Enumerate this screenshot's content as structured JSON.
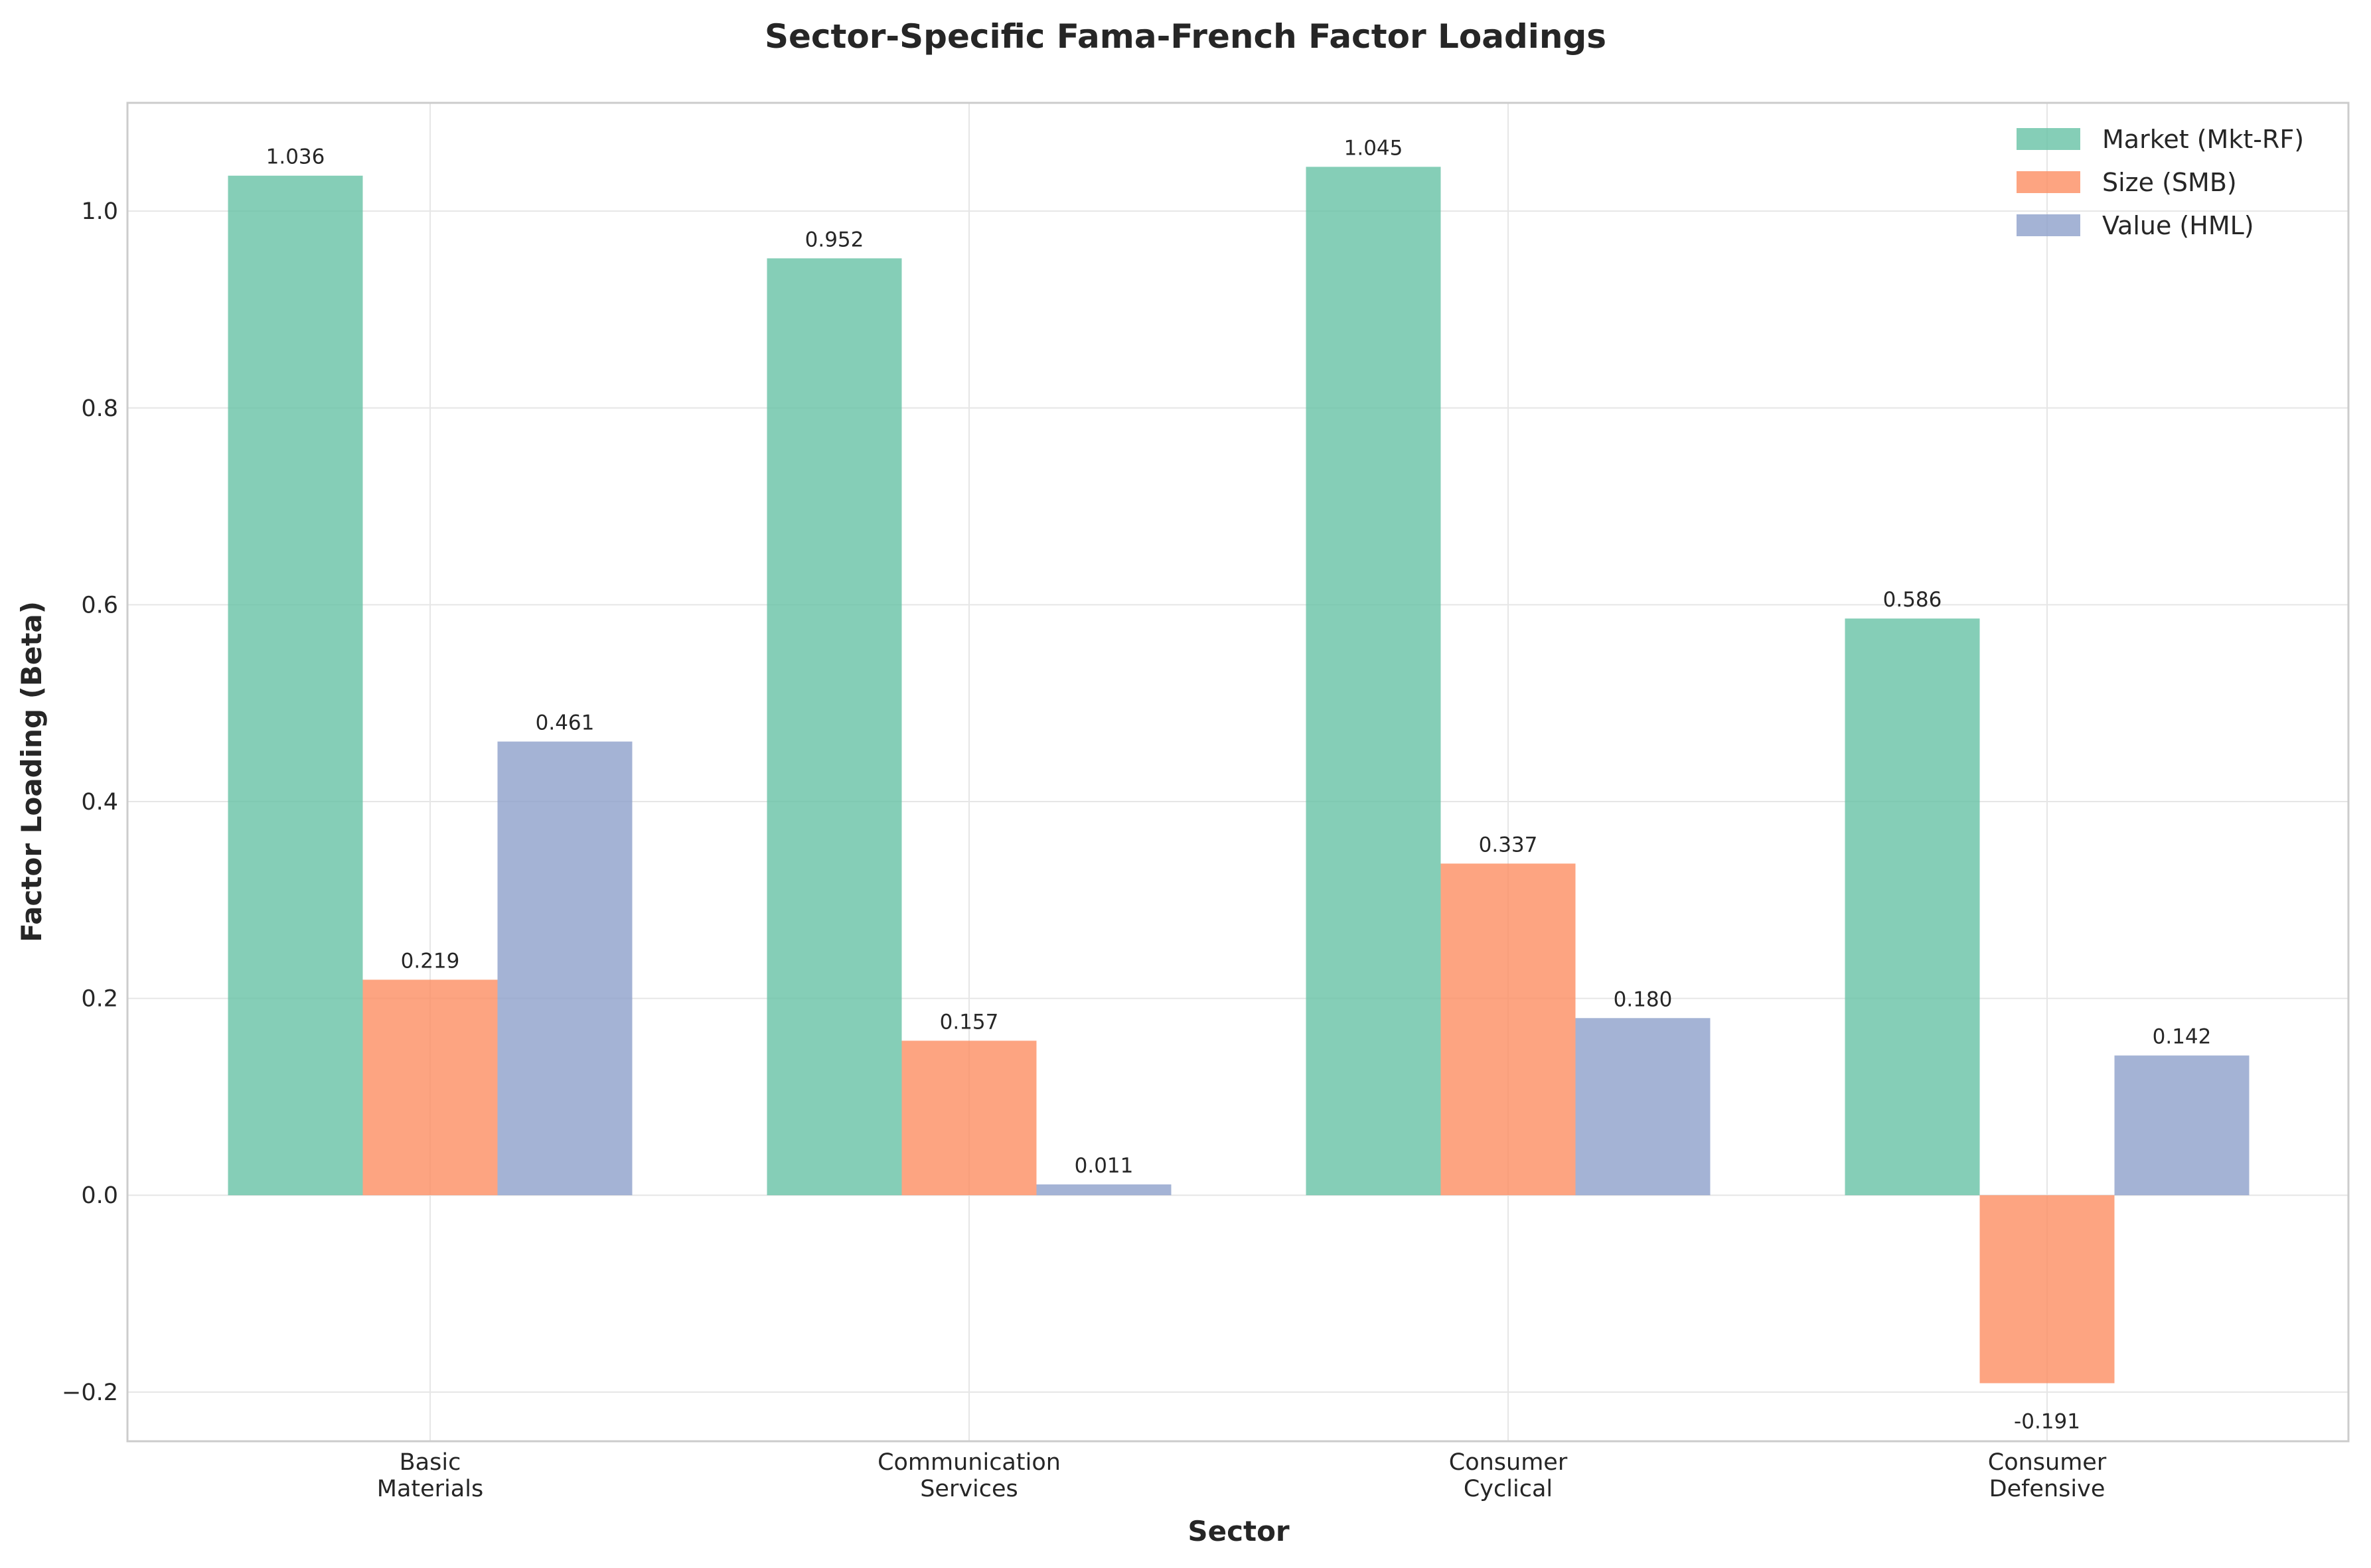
{
  "chart_data": {
    "type": "bar",
    "title": "Sector-Specific Fama-French Factor Loadings",
    "xlabel": "Sector",
    "ylabel": "Factor Loading (Beta)",
    "categories": [
      [
        "Basic",
        "Materials"
      ],
      [
        "Communication",
        "Services"
      ],
      [
        "Consumer",
        "Cyclical"
      ],
      [
        "Consumer",
        "Defensive"
      ]
    ],
    "series": [
      {
        "name": "Market (Mkt-RF)",
        "color": "#66c2a5",
        "values": [
          1.036,
          0.952,
          1.045,
          0.586
        ],
        "labels": [
          "1.036",
          "0.952",
          "1.045",
          "0.586"
        ]
      },
      {
        "name": "Size (SMB)",
        "color": "#fc8d62",
        "values": [
          0.219,
          0.157,
          0.337,
          -0.191
        ],
        "labels": [
          "0.219",
          "0.157",
          "0.337",
          "-0.191"
        ]
      },
      {
        "name": "Value (HML)",
        "color": "#8da0cb",
        "values": [
          0.461,
          0.011,
          0.18,
          0.142
        ],
        "labels": [
          "0.461",
          "0.011",
          "0.180",
          "0.142"
        ]
      }
    ],
    "ylim": [
      -0.25,
      1.11
    ],
    "yticks": [
      -0.2,
      0.0,
      0.2,
      0.4,
      0.6,
      0.8,
      1.0
    ],
    "ytick_labels": [
      "−0.2",
      "0.0",
      "0.2",
      "0.4",
      "0.6",
      "0.8",
      "1.0"
    ],
    "grid": true,
    "legend_position": "top-right"
  }
}
